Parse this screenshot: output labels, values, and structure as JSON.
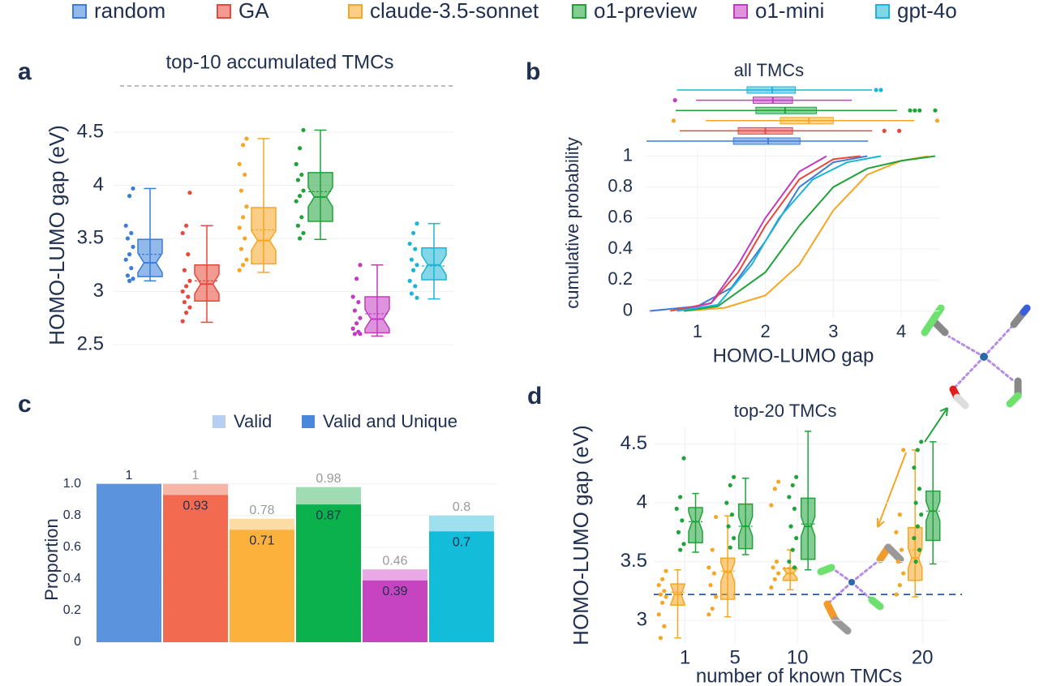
{
  "panel_labels": [
    "a",
    "b",
    "c",
    "d"
  ],
  "chart_data": [
    {
      "type": "box",
      "title": "top-10 accumulated TMCs",
      "y_label": "HOMO-LUMO gap (eV)",
      "ylim": [
        2.4,
        4.6
      ],
      "yticks": [
        2.5,
        3,
        3.5,
        4,
        4.5
      ],
      "grid": true,
      "series": [
        {
          "name": "random",
          "color": "#3b7dd8",
          "min": 3.1,
          "q1": 3.14,
          "median": 3.27,
          "q3": 3.49,
          "max": 3.97,
          "mean": 3.35,
          "points": [
            3.97,
            3.9,
            3.62,
            3.55,
            3.5,
            3.42,
            3.35,
            3.3,
            3.22,
            3.15,
            3.12,
            3.1
          ]
        },
        {
          "name": "GA",
          "color": "#e8483b",
          "min": 2.71,
          "q1": 2.91,
          "median": 3.07,
          "q3": 3.25,
          "max": 3.62,
          "mean": 3.1,
          "points": [
            3.93,
            3.62,
            3.55,
            3.35,
            3.2,
            3.1,
            3.05,
            3.0,
            2.95,
            2.9,
            2.85,
            2.8,
            2.72
          ]
        },
        {
          "name": "claude-3.5-sonnet",
          "color": "#f5a623",
          "min": 3.18,
          "q1": 3.26,
          "median": 3.48,
          "q3": 3.79,
          "max": 4.44,
          "mean": 3.58,
          "points": [
            4.44,
            4.38,
            4.2,
            4.1,
            3.95,
            3.8,
            3.7,
            3.6,
            3.5,
            3.4,
            3.3,
            3.25,
            3.2
          ]
        },
        {
          "name": "o1-preview",
          "color": "#1fa33a",
          "min": 3.49,
          "q1": 3.66,
          "median": 3.89,
          "q3": 4.12,
          "max": 4.52,
          "mean": 3.94,
          "points": [
            4.52,
            4.35,
            4.2,
            4.1,
            4.05,
            3.95,
            3.9,
            3.85,
            3.7,
            3.62,
            3.55,
            3.5
          ]
        },
        {
          "name": "o1-mini",
          "color": "#c13cbf",
          "min": 2.58,
          "q1": 2.61,
          "median": 2.74,
          "q3": 2.95,
          "max": 3.25,
          "mean": 2.79,
          "points": [
            3.25,
            3.12,
            2.95,
            2.9,
            2.82,
            2.75,
            2.7,
            2.65,
            2.62,
            2.6,
            2.6
          ]
        },
        {
          "name": "gpt-4o",
          "color": "#1cb5d5",
          "min": 2.93,
          "q1": 3.11,
          "median": 3.25,
          "q3": 3.41,
          "max": 3.64,
          "mean": 3.24,
          "points": [
            3.64,
            3.55,
            3.45,
            3.4,
            3.3,
            3.25,
            3.2,
            3.1,
            3.05,
            2.98,
            2.94
          ]
        }
      ]
    },
    {
      "type": "line",
      "title": "all TMCs",
      "x_label": "HOMO-LUMO gap",
      "y_label": "cumulative probability",
      "xlim": [
        0.25,
        4.56
      ],
      "xticks": [
        1,
        2,
        3,
        4
      ],
      "ylim": [
        -0.05,
        1.05
      ],
      "yticks": [
        0,
        0.2,
        0.4,
        0.6,
        0.8,
        1
      ],
      "grid": true,
      "series": [
        {
          "color": "#3b7dd8",
          "x": [
            0.3,
            1,
            1.5,
            2,
            2.5,
            3,
            3.5
          ],
          "values": [
            0,
            0.03,
            0.15,
            0.45,
            0.8,
            0.96,
            1
          ],
          "box": {
            "min": 0.25,
            "q1": 1.53,
            "median": 2.04,
            "q3": 2.51,
            "max": 3.51,
            "outliers": []
          }
        },
        {
          "color": "#e8483b",
          "x": [
            0.6,
            1.2,
            1.6,
            2,
            2.5,
            3,
            3.4
          ],
          "values": [
            0,
            0.05,
            0.25,
            0.55,
            0.85,
            0.98,
            1
          ],
          "box": {
            "min": 0.74,
            "q1": 1.6,
            "median": 2.0,
            "q3": 2.4,
            "max": 3.57,
            "outliers": [
              3.75,
              3.97
            ]
          }
        },
        {
          "color": "#f5a623",
          "x": [
            0.8,
            1.4,
            2,
            2.5,
            3,
            3.5,
            4,
            4.4
          ],
          "values": [
            0,
            0.02,
            0.1,
            0.3,
            0.65,
            0.88,
            0.97,
            1
          ],
          "box": {
            "min": 1.12,
            "q1": 2.22,
            "median": 2.64,
            "q3": 3.0,
            "max": 4.19,
            "outliers": [
              0.65,
              4.53
            ]
          }
        },
        {
          "color": "#1fa33a",
          "x": [
            0.8,
            1.3,
            2,
            2.5,
            3,
            3.5,
            4,
            4.5
          ],
          "values": [
            0,
            0.03,
            0.25,
            0.55,
            0.8,
            0.92,
            0.97,
            1
          ],
          "box": {
            "min": 0.68,
            "q1": 1.86,
            "median": 2.29,
            "q3": 2.75,
            "max": 3.94,
            "outliers": [
              4.13,
              4.2,
              4.27,
              4.5
            ]
          }
        },
        {
          "color": "#c13cbf",
          "x": [
            0.7,
            1.2,
            1.6,
            2,
            2.5,
            2.9
          ],
          "values": [
            0,
            0.05,
            0.3,
            0.6,
            0.9,
            1
          ],
          "box": {
            "min": 0.98,
            "q1": 1.82,
            "median": 2.11,
            "q3": 2.4,
            "max": 3.27,
            "outliers": [
              0.67
            ]
          }
        },
        {
          "color": "#1cb5d5",
          "x": [
            0.7,
            1.3,
            1.8,
            2.2,
            2.7,
            3.2,
            3.7
          ],
          "values": [
            0,
            0.04,
            0.3,
            0.6,
            0.85,
            0.96,
            1
          ],
          "box": {
            "min": 0.7,
            "q1": 1.73,
            "median": 2.1,
            "q3": 2.44,
            "max": 3.57,
            "outliers": [
              3.63,
              3.7
            ]
          }
        }
      ]
    },
    {
      "type": "bar",
      "y_label": "Proportion",
      "ylim": [
        0,
        1.05
      ],
      "yticks": [
        0,
        0.2,
        0.4,
        0.6,
        0.8,
        {
          "value": 1,
          "label": "1.0"
        }
      ],
      "series": [
        {
          "name": "Valid",
          "color": "#b9cff2",
          "values": [
            1,
            1,
            0.78,
            0.98,
            0.46,
            0.8
          ],
          "colors": [
            "#a9c6ee",
            "#f7b5a7",
            "#fcdca5",
            "#9fdcb4",
            "#e9a9e6",
            "#9fe0ee"
          ]
        },
        {
          "name": "Valid and Unique",
          "color": "#4a86d9",
          "values": [
            1,
            0.93,
            0.71,
            0.87,
            0.39,
            0.7
          ],
          "colors": [
            "#5b93dc",
            "#f26b50",
            "#fbb13c",
            "#0bb24c",
            "#c644c0",
            "#13bcd9"
          ]
        }
      ]
    },
    {
      "type": "box",
      "title": "top-20 TMCs",
      "x_label": "number of known TMCs",
      "y_label": "HOMO-LUMO gap (eV)",
      "xlim": [
        -1.5,
        22
      ],
      "xticks": [
        1,
        5,
        10,
        20
      ],
      "ylim": [
        2.8,
        4.65
      ],
      "yticks": [
        3,
        3.5,
        4,
        4.5
      ],
      "grid": true,
      "x": [
        1,
        5,
        10,
        20
      ],
      "reference_line": 3.22,
      "series": [
        {
          "color": "#f5a623",
          "boxes": [
            {
              "min": 2.85,
              "q1": 3.13,
              "median": 3.22,
              "q3": 3.31,
              "max": 3.43,
              "mean": 3.24,
              "points": [
                3.42,
                3.35,
                3.3,
                3.25,
                3.22,
                3.2,
                3.15,
                3.05,
                2.95,
                2.85
              ]
            },
            {
              "min": 3.03,
              "q1": 3.18,
              "median": 3.41,
              "q3": 3.53,
              "max": 3.89,
              "mean": 3.42,
              "points": [
                3.88,
                3.6,
                3.45,
                3.4,
                3.3,
                3.2,
                3.1,
                3.05
              ]
            },
            {
              "min": 3.26,
              "q1": 3.34,
              "median": 3.4,
              "q3": 3.44,
              "max": 3.6,
              "mean": 3.45,
              "points": [
                4.18,
                4.12,
                3.98,
                3.5,
                3.45,
                3.4,
                3.35,
                3.28
              ]
            },
            {
              "min": 3.2,
              "q1": 3.34,
              "median": 3.53,
              "q3": 3.79,
              "max": 4.45,
              "mean": 3.6,
              "points": [
                4.45,
                3.9,
                3.75,
                3.6,
                3.5,
                3.4,
                3.3,
                3.22
              ]
            }
          ]
        },
        {
          "color": "#1fa33a",
          "boxes": [
            {
              "min": 3.58,
              "q1": 3.66,
              "median": 3.84,
              "q3": 3.96,
              "max": 4.08,
              "mean": 3.84,
              "points": [
                4.38,
                4.05,
                3.95,
                3.85,
                3.75,
                3.65,
                3.6
              ]
            },
            {
              "min": 3.56,
              "q1": 3.61,
              "median": 3.8,
              "q3": 3.99,
              "max": 4.21,
              "mean": 3.8,
              "points": [
                4.22,
                4.15,
                4.0,
                3.9,
                3.8,
                3.7,
                3.62
              ]
            },
            {
              "min": 3.43,
              "q1": 3.52,
              "median": 3.8,
              "q3": 4.04,
              "max": 4.61,
              "mean": 3.82,
              "points": [
                4.22,
                4.15,
                4.05,
                3.95,
                3.8,
                3.7,
                3.6,
                3.5,
                3.45
              ]
            },
            {
              "min": 3.48,
              "q1": 3.68,
              "median": 3.93,
              "q3": 4.1,
              "max": 4.52,
              "mean": 3.93,
              "points": [
                4.52,
                4.45,
                4.3,
                4.12,
                4.0,
                3.9,
                3.8,
                3.7,
                3.6,
                3.5
              ]
            }
          ]
        }
      ]
    }
  ]
}
